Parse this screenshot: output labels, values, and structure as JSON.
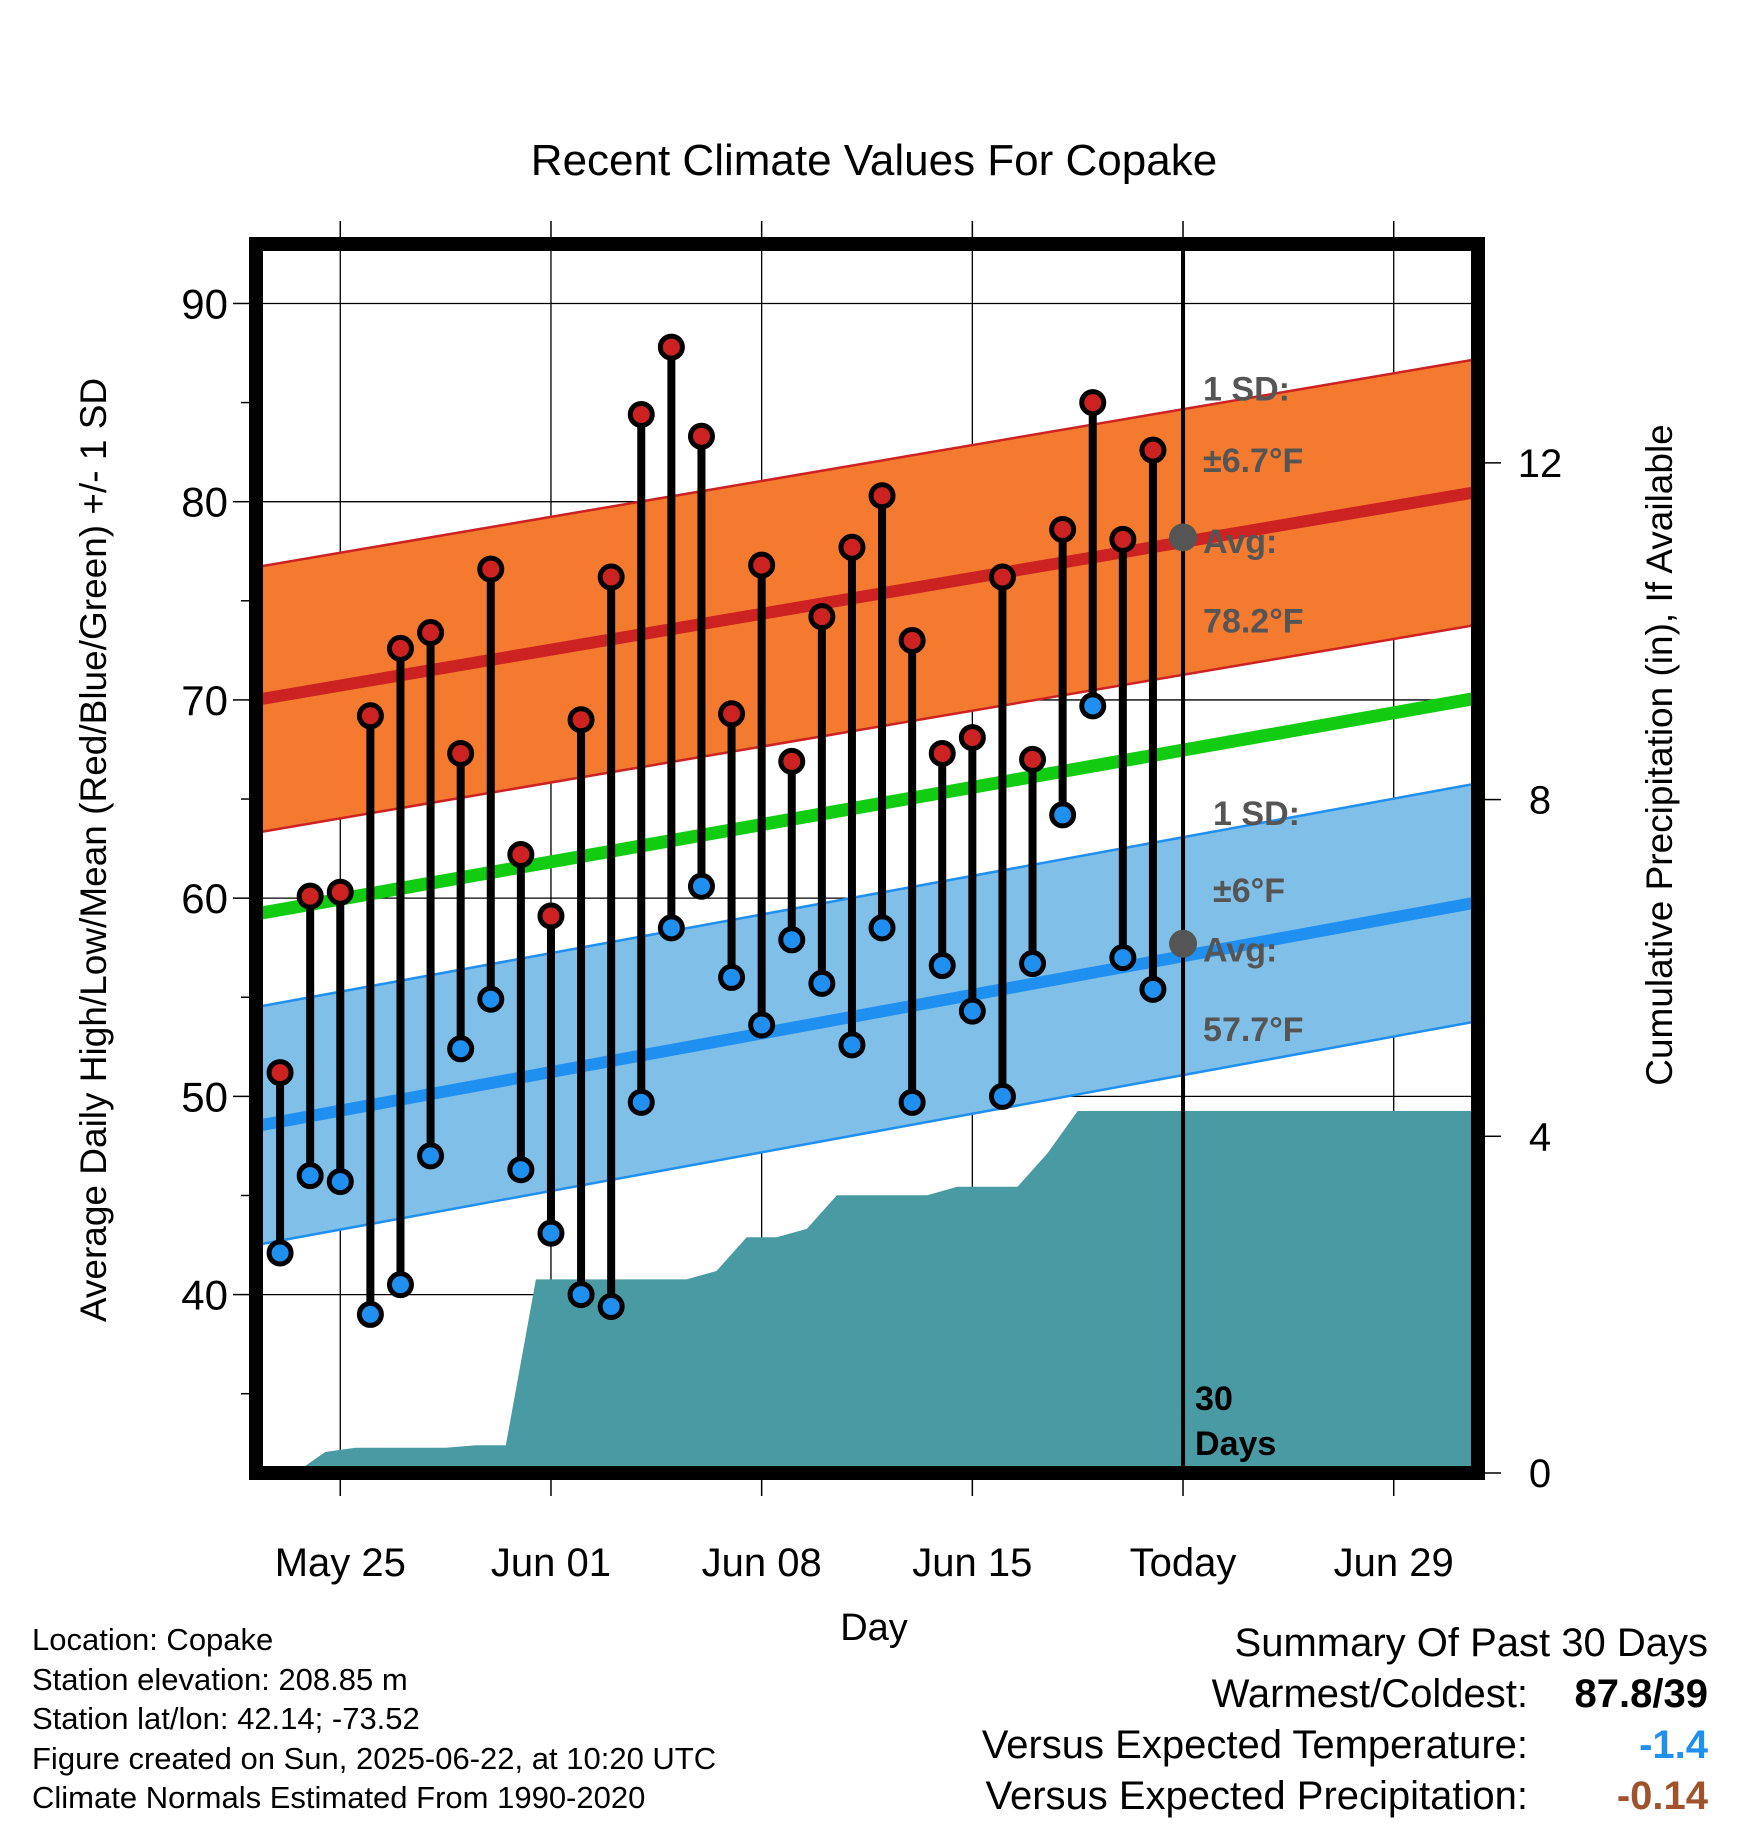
{
  "chart_data": {
    "type": "line",
    "title": "Recent Climate Values For Copake",
    "xlabel": "Day",
    "ylabel": "Average Daily High/Low/Mean (Red/Blue/Green) +/- 1 SD",
    "y2label": "Cumulative Precipitation (in), If Available",
    "x_tick_labels": [
      "May 25",
      "Jun 01",
      "Jun 08",
      "Jun 15",
      "Today",
      "Jun 29"
    ],
    "x_tick_days": [
      2,
      9,
      16,
      23,
      30,
      37
    ],
    "xlim": [
      -0.8,
      39.8
    ],
    "ylim": [
      31,
      93
    ],
    "y_ticks": [
      40,
      50,
      60,
      70,
      80,
      90
    ],
    "y2lim": [
      0,
      14.6
    ],
    "y2_ticks": [
      0,
      4,
      8,
      12
    ],
    "grid": true,
    "today_day": 30,
    "today_label_lines": [
      "30",
      "Days"
    ],
    "days": [
      -0.8,
      39.8
    ],
    "normal_high": {
      "values": [
        70.0,
        80.5
      ],
      "sd": 6.7,
      "color": "#cc2222",
      "band_color": "#f47a30"
    },
    "normal_low": {
      "values": [
        48.5,
        59.8
      ],
      "sd": 6.0,
      "color": "#1f8ff0",
      "band_color": "#7fbfe8"
    },
    "normal_mean": {
      "values": [
        59.2,
        70.1
      ],
      "color": "#11cc11"
    },
    "high_annotation": {
      "line1": "1 SD:",
      "line2": "±6.7°F",
      "line3": "Avg:",
      "line4": "78.2°F"
    },
    "low_annotation": {
      "line1": "1 SD:",
      "line2": "±6°F",
      "line3": "Avg:",
      "line4": "57.7°F"
    },
    "obs_days": [
      0,
      1,
      2,
      3,
      4,
      5,
      6,
      7,
      8,
      9,
      10,
      11,
      12,
      13,
      14,
      15,
      16,
      17,
      18,
      19,
      20,
      21,
      22,
      23,
      24,
      25,
      26,
      27,
      28,
      29
    ],
    "obs_high": [
      51.2,
      60.1,
      60.3,
      69.2,
      72.6,
      73.4,
      67.3,
      76.6,
      62.2,
      59.1,
      69.0,
      76.2,
      84.4,
      87.8,
      83.3,
      69.3,
      76.8,
      66.9,
      74.2,
      77.7,
      80.3,
      73.0,
      67.3,
      68.1,
      76.2,
      67.0,
      78.6,
      85.0,
      78.1,
      82.6
    ],
    "obs_low": [
      42.1,
      46.0,
      45.7,
      39.0,
      40.5,
      47.0,
      52.4,
      54.9,
      46.3,
      43.1,
      40.0,
      39.4,
      49.7,
      58.5,
      60.6,
      56.0,
      53.6,
      57.9,
      55.7,
      52.6,
      58.5,
      49.7,
      56.6,
      54.3,
      50.0,
      56.7,
      64.2,
      69.7,
      57.0,
      55.4
    ],
    "precip_x": [
      -0.5,
      0.5,
      1.5,
      2.5,
      3.5,
      4.5,
      5.5,
      6.5,
      7.5,
      8.5,
      9.5,
      10.5,
      11.5,
      12.5,
      13.5,
      14.5,
      15.5,
      16.5,
      17.5,
      18.5,
      19.5,
      20.5,
      21.5,
      22.5,
      23.5,
      24.5,
      25.5,
      26.5,
      27.5,
      28.5,
      29.5,
      30.5,
      39.8
    ],
    "precip_cum": [
      0.0,
      0.0,
      0.25,
      0.3,
      0.3,
      0.3,
      0.3,
      0.33,
      0.33,
      2.3,
      2.3,
      2.3,
      2.3,
      2.3,
      2.3,
      2.4,
      2.8,
      2.8,
      2.9,
      3.3,
      3.3,
      3.3,
      3.3,
      3.4,
      3.4,
      3.4,
      3.8,
      4.3,
      4.3,
      4.3,
      4.3,
      4.3,
      4.3
    ],
    "colors": {
      "precip": "#4a9aa4",
      "high_dot": "#cc2222",
      "low_dot": "#1f8ff0",
      "today_dot": "#555555",
      "annotation": "#555555"
    }
  },
  "footer": {
    "location": "Location: Copake",
    "elevation": "Station elevation: 208.85 m",
    "latlon": "Station lat/lon: 42.14; -73.52",
    "created": "Figure created on Sun, 2025-06-22, at 10:20 UTC",
    "normals": "Climate Normals Estimated From 1990-2020"
  },
  "summary": {
    "title": "Summary Of Past 30 Days",
    "warm_cold_label": "Warmest/Coldest:",
    "warm_cold_value": "87.8/39",
    "temp_label": "Versus Expected Temperature:",
    "temp_value": "-1.4",
    "temp_color": "#1f8ff0",
    "precip_label": "Versus Expected Precipitation:",
    "precip_value": "-0.14",
    "precip_color": "#a0522d"
  }
}
